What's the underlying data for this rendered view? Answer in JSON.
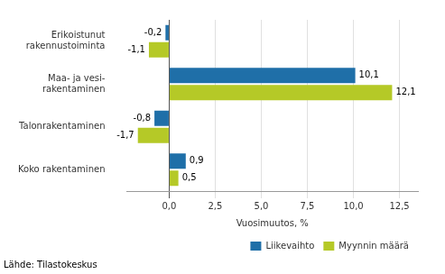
{
  "chart_data": {
    "type": "bar",
    "orientation": "horizontal",
    "categories": [
      "Erikoistunut\nrakennustoiminta",
      "Maa- ja vesi-\nrakentaminen",
      "Talonrakentaminen",
      "Koko rakentaminen"
    ],
    "series": [
      {
        "name": "Liikevaihto",
        "color": "#1F6FA8",
        "values": [
          -0.2,
          10.1,
          -0.8,
          0.9
        ],
        "value_labels": [
          "-0,2",
          "10,1",
          "-0,8",
          "0,9"
        ]
      },
      {
        "name": "Myynnin määrä",
        "color": "#B5C927",
        "values": [
          -1.1,
          12.1,
          -1.7,
          0.5
        ],
        "value_labels": [
          "-1,1",
          "12,1",
          "-1,7",
          "0,5"
        ]
      }
    ],
    "xlabel": "Vuosimuutos, %",
    "xlim": [
      -2.3,
      13.5
    ],
    "xticks": [
      {
        "value": 0.0,
        "label": "0,0"
      },
      {
        "value": 2.5,
        "label": "2,5"
      },
      {
        "value": 5.0,
        "label": "5,0"
      },
      {
        "value": 7.5,
        "label": "7,5"
      },
      {
        "value": 10.0,
        "label": "10,0"
      },
      {
        "value": 12.5,
        "label": "12,5"
      }
    ],
    "grid": true,
    "legend": "lower right",
    "data_labels": true,
    "annotations": [
      "Lähde: Tilastokeskus"
    ]
  }
}
